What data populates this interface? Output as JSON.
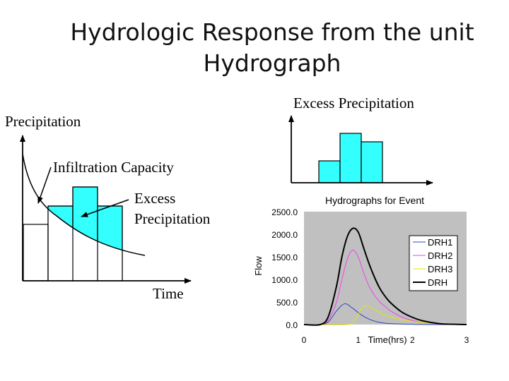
{
  "slide": {
    "title_line1": "Hydrologic Response from the unit",
    "title_line2": "Hydrograph"
  },
  "left_diagram": {
    "precipitation_label": "Precipitation",
    "infiltration_label": "Infiltration Capacity",
    "excess_label_line1": "Excess",
    "excess_label_line2": "Precipitation",
    "time_label": "Time",
    "excess_fill_color": "#33ffff"
  },
  "excess_diagram": {
    "label": "Excess Precipitation",
    "bar_color": "#33ffff"
  },
  "chart_data": {
    "type": "line",
    "title": "Hydrographs for Event",
    "xlabel": "Time(hrs)",
    "ylabel": "Flow",
    "xlim": [
      0,
      3
    ],
    "ylim": [
      0,
      2500
    ],
    "x_ticks": [
      "0",
      "1",
      "2",
      "3"
    ],
    "y_ticks": [
      "0.0",
      "500.0",
      "1000.0",
      "1500.0",
      "2000.0",
      "2500.0"
    ],
    "legend_position": "right",
    "series": [
      {
        "name": "DRH1",
        "color": "#3344bb",
        "width": 1,
        "x": [
          0,
          0.3,
          0.45,
          0.6,
          0.75,
          0.9,
          1.05,
          1.2,
          1.35,
          1.5,
          1.7,
          2.0,
          2.3,
          3.0
        ],
        "y": [
          0,
          0,
          60,
          300,
          460,
          360,
          220,
          120,
          60,
          30,
          15,
          5,
          0,
          0
        ]
      },
      {
        "name": "DRH2",
        "color": "#ee44ee",
        "width": 1,
        "x": [
          0,
          0.3,
          0.45,
          0.6,
          0.7,
          0.8,
          0.9,
          1.0,
          1.1,
          1.2,
          1.3,
          1.4,
          1.5,
          1.6,
          1.8,
          2.0,
          2.2,
          2.5,
          2.8,
          3.0
        ],
        "y": [
          0,
          0,
          100,
          500,
          1000,
          1450,
          1650,
          1500,
          1150,
          850,
          650,
          500,
          400,
          300,
          170,
          90,
          40,
          10,
          0,
          0
        ]
      },
      {
        "name": "DRH3",
        "color": "#e6e600",
        "width": 1,
        "x": [
          0,
          0.8,
          0.95,
          1.05,
          1.15,
          1.3,
          1.45,
          1.6,
          1.8,
          2.0,
          2.2,
          2.5,
          2.8,
          3.0
        ],
        "y": [
          0,
          0,
          120,
          330,
          420,
          330,
          230,
          170,
          110,
          70,
          40,
          15,
          5,
          0
        ]
      },
      {
        "name": "DRH",
        "color": "#000000",
        "width": 2,
        "x": [
          0,
          0.3,
          0.45,
          0.6,
          0.7,
          0.8,
          0.9,
          1.0,
          1.1,
          1.2,
          1.3,
          1.4,
          1.5,
          1.6,
          1.8,
          2.0,
          2.2,
          2.5,
          2.8,
          3.0
        ],
        "y": [
          0,
          0,
          180,
          850,
          1500,
          1950,
          2130,
          2050,
          1700,
          1350,
          1050,
          800,
          620,
          480,
          280,
          160,
          80,
          20,
          5,
          0
        ]
      }
    ]
  }
}
